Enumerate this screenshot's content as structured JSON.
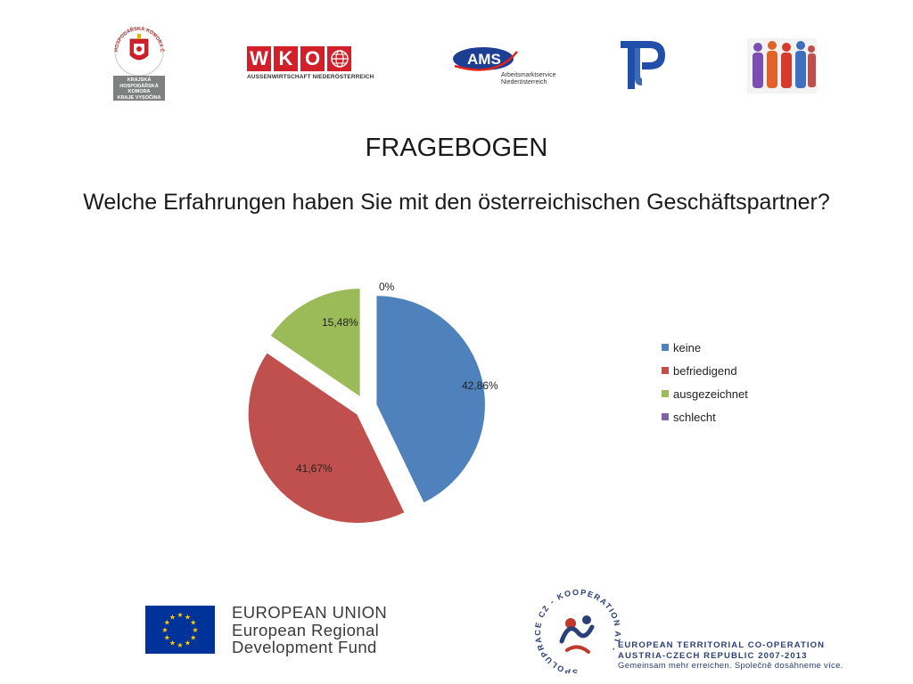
{
  "header": {
    "khk": {
      "ring_text": "HOSPODÁŘSKÁ KOMORA ČESKÉ REPUBLIKY",
      "box_lines": [
        "KRAJSKÁ",
        "HOSPODÁŘSKÁ",
        "KOMORA",
        "KRAJE VYSOČINA"
      ]
    },
    "wko": {
      "letters": [
        "W",
        "K",
        "O"
      ],
      "subtitle": "AUSSENWIRTSCHAFT NIEDERÖSTERREICH"
    },
    "ams": {
      "wordmark": "AMS",
      "line1": "Arbeitsmarktservice",
      "line2": "Niederösterreich"
    },
    "icons": [
      "khk-emblem-icon",
      "wko-globe-icon",
      "ams-swoosh-icon",
      "tp-logo-icon",
      "people-group-icon"
    ]
  },
  "title": "FRAGEBOGEN",
  "question": "Welche Erfahrungen haben Sie mit den österreichischen Geschäftspartner?",
  "chart_data": {
    "type": "pie",
    "categories": [
      "keine",
      "befriedigend",
      "ausgezeichnet",
      "schlecht"
    ],
    "values": [
      42.86,
      41.67,
      15.48,
      0
    ],
    "labels": [
      "42,86%",
      "41,67%",
      "15,48%",
      "0%"
    ],
    "colors": [
      "#4f81bd",
      "#c0504d",
      "#9bbb59",
      "#8064a2"
    ],
    "exploded": true,
    "legend_position": "right",
    "title": ""
  },
  "footer": {
    "eu": {
      "line1": "EUROPEAN UNION",
      "line2": "European Regional",
      "line3": "Development Fund",
      "flag_color": "#003399",
      "star_color": "#ffcc00"
    },
    "coop": {
      "ring_text": "SPOLUPRÁCE CZ - KOOPERATION AT -",
      "line1": "EUROPEAN TERRITORIAL CO-OPERATION",
      "line2": "AUSTRIA-CZECH REPUBLIC 2007-2013",
      "slogan": "Gemeinsam mehr erreichen. Společně dosáhneme více."
    }
  }
}
